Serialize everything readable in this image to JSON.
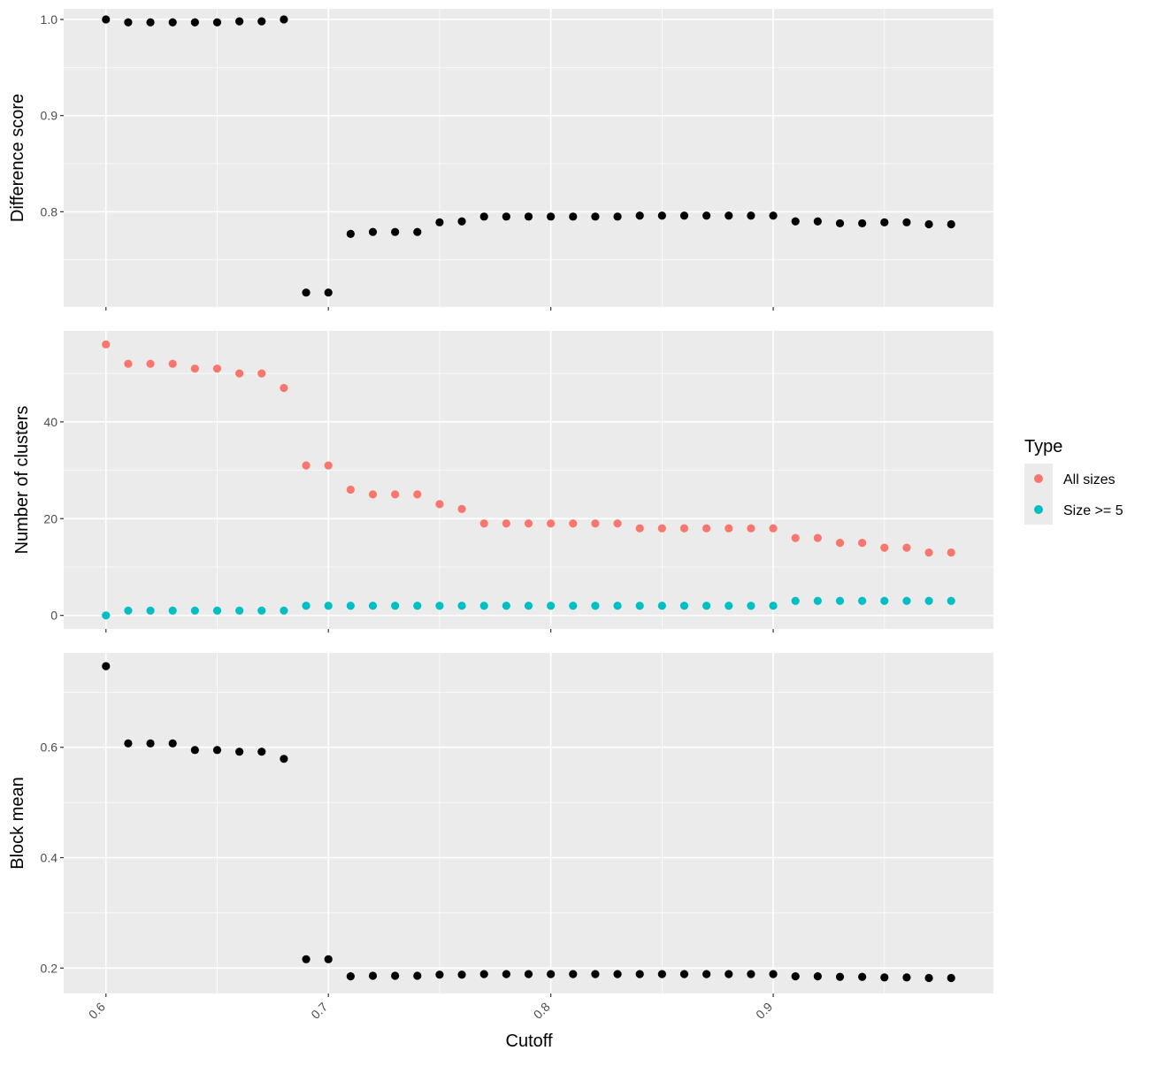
{
  "chart_data": {
    "type": "scatter",
    "xlabel": "Cutoff",
    "x_ticks": [
      0.6,
      0.7,
      0.8,
      0.9
    ],
    "x_tick_labels": [
      "0.6",
      "0.7",
      "0.8",
      "0.9"
    ],
    "xlim": [
      0.581,
      0.999
    ],
    "x": [
      0.6,
      0.61,
      0.62,
      0.63,
      0.64,
      0.65,
      0.66,
      0.67,
      0.68,
      0.69,
      0.7,
      0.71,
      0.72,
      0.73,
      0.74,
      0.75,
      0.76,
      0.77,
      0.78,
      0.79,
      0.8,
      0.81,
      0.82,
      0.83,
      0.84,
      0.85,
      0.86,
      0.87,
      0.88,
      0.89,
      0.9,
      0.91,
      0.92,
      0.93,
      0.94,
      0.95,
      0.96,
      0.97,
      0.98
    ],
    "grid": true,
    "panels": [
      {
        "ylabel": "Difference score",
        "ylim": [
          0.701,
          1.011
        ],
        "y_ticks": [
          0.8,
          0.9,
          1.0
        ],
        "y_tick_labels": [
          "0.8",
          "0.9",
          "1.0"
        ],
        "series": [
          {
            "color": "#000000",
            "values": [
              1.0,
              0.997,
              0.997,
              0.997,
              0.997,
              0.997,
              0.998,
              0.998,
              1.0,
              0.716,
              0.716,
              0.777,
              0.779,
              0.779,
              0.779,
              0.789,
              0.79,
              0.795,
              0.795,
              0.795,
              0.795,
              0.795,
              0.795,
              0.795,
              0.796,
              0.796,
              0.796,
              0.796,
              0.796,
              0.796,
              0.796,
              0.79,
              0.79,
              0.788,
              0.788,
              0.789,
              0.789,
              0.787,
              0.787
            ]
          }
        ]
      },
      {
        "ylabel": "Number of clusters",
        "ylim": [
          -2.8,
          58.8
        ],
        "y_ticks": [
          0,
          20,
          40
        ],
        "y_tick_labels": [
          "0",
          "20",
          "40"
        ],
        "series": [
          {
            "name": "All sizes",
            "color": "#F8766D",
            "values": [
              56,
              52,
              52,
              52,
              51,
              51,
              50,
              50,
              47,
              31,
              31,
              26,
              25,
              25,
              25,
              23,
              22,
              19,
              19,
              19,
              19,
              19,
              19,
              19,
              18,
              18,
              18,
              18,
              18,
              18,
              18,
              16,
              16,
              15,
              15,
              14,
              14,
              13,
              13
            ]
          },
          {
            "name": "Size >= 5",
            "color": "#00BFC4",
            "values": [
              0,
              1,
              1,
              1,
              1,
              1,
              1,
              1,
              1,
              2,
              2,
              2,
              2,
              2,
              2,
              2,
              2,
              2,
              2,
              2,
              2,
              2,
              2,
              2,
              2,
              2,
              2,
              2,
              2,
              2,
              2,
              3,
              3,
              3,
              3,
              3,
              3,
              3,
              3
            ]
          }
        ]
      },
      {
        "ylabel": "Block mean",
        "ylim": [
          0.154,
          0.771
        ],
        "y_ticks": [
          0.2,
          0.4,
          0.6
        ],
        "y_tick_labels": [
          "0.2",
          "0.4",
          "0.6"
        ],
        "series": [
          {
            "color": "#000000",
            "values": [
              0.747,
              0.607,
              0.607,
              0.607,
              0.595,
              0.595,
              0.592,
              0.592,
              0.579,
              0.216,
              0.216,
              0.185,
              0.186,
              0.186,
              0.186,
              0.188,
              0.188,
              0.189,
              0.189,
              0.189,
              0.189,
              0.189,
              0.189,
              0.189,
              0.189,
              0.189,
              0.189,
              0.189,
              0.189,
              0.189,
              0.189,
              0.185,
              0.185,
              0.184,
              0.184,
              0.183,
              0.183,
              0.182,
              0.182
            ]
          }
        ]
      }
    ],
    "legend": {
      "title": "Type",
      "placement": "right",
      "items": [
        {
          "label": "All sizes",
          "color": "#F8766D"
        },
        {
          "label": "Size >= 5",
          "color": "#00BFC4"
        }
      ]
    }
  }
}
